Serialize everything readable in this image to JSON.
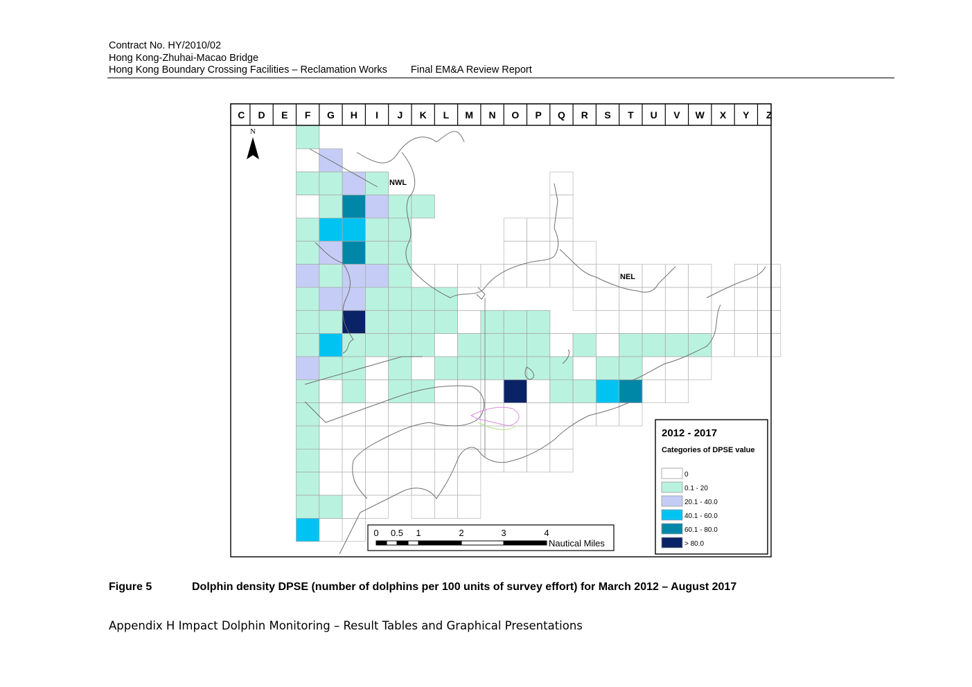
{
  "header": {
    "contract": "Contract No. HY/2010/02",
    "project": "Hong Kong-Zhuhai-Macao Bridge",
    "works": "Hong Kong Boundary Crossing Facilities – Reclamation Works",
    "report": "Final EM&A Review Report"
  },
  "map": {
    "columns": [
      "C",
      "D",
      "E",
      "F",
      "G",
      "H",
      "I",
      "J",
      "K",
      "L",
      "M",
      "N",
      "O",
      "P",
      "Q",
      "R",
      "S",
      "T",
      "U",
      "V",
      "W",
      "X",
      "Y",
      "Z"
    ],
    "north_label": "N",
    "area_labels": [
      "NWL",
      "NEL"
    ],
    "legend": {
      "title": "2012 - 2017",
      "subtitle": "Categories of DPSE value",
      "items": [
        {
          "label": "0",
          "color": "#ffffff"
        },
        {
          "label": "0.1 - 20",
          "color": "#b9f3e0"
        },
        {
          "label": "20.1 - 40.0",
          "color": "#c5cdf6"
        },
        {
          "label": "40.1 - 60.0",
          "color": "#00c3f2"
        },
        {
          "label": "60.1 - 80.0",
          "color": "#0087a8"
        },
        {
          "label": "> 80.0",
          "color": "#0a2366"
        }
      ]
    },
    "scale_bar": {
      "ticks": [
        "0",
        "0.5",
        "1",
        "2",
        "3",
        "4"
      ],
      "unit": "Nautical Miles"
    },
    "grid_rows": [
      "...F:1",
      "...F:0 G:2",
      "...F:1 G:1 H:2 I:1",
      "...F:0 G:1 H:4 I:2 J:1 K:1",
      "...F:1 G:3 H:3 I:1 J:1",
      "...F:1 G:2 H:4 I:1 J:1",
      "...F:2 G:1 H:2 I:2 J:1",
      "...F:1 G:2 H:2 I:1 J:1 K:1 L:1",
      "...F:1 G:1 H:5 I:1 J:1 K:1 L:1 M:0 N:1 O:1 P:1",
      "...F:1 G:3 H:1 I:1 J:1 K:1 L:0 M:1 N:1 O:1 P:1 Q:0 R:1 S:0 T:1 U:1 V:1 W:1",
      "...F:2 G:1 H:1 I:0 J:1 K:0 L:1 M:1 N:1 O:1 P:1 Q:1 R:0 S:1 T:1",
      "...F:1 G:0 H:1 I:0 J:1 K:1 L:0 M:0 N:0 O:5 P:0 Q:1 R:1 S:3 T:4",
      "...F:1",
      "...F:1",
      "...F:1",
      "...F:1",
      "...F:1 G:1",
      "...F:3"
    ],
    "grid_columns": "cell values: letter = column, number = legend category index (0 = 0, 1 = 0.1-20, 2 = 20.1-40.0, 3 = 40.1-60.0, 4 = 60.1-80.0, 5 = > 80.0)"
  },
  "caption": {
    "figure": "Figure 5",
    "text": "Dolphin density DPSE (number of dolphins per 100 units of survey effort) for March 2012 – August 2017"
  },
  "footer": {
    "appendix": "Appendix H Impact Dolphin Monitoring – Result Tables and Graphical Presentations"
  }
}
